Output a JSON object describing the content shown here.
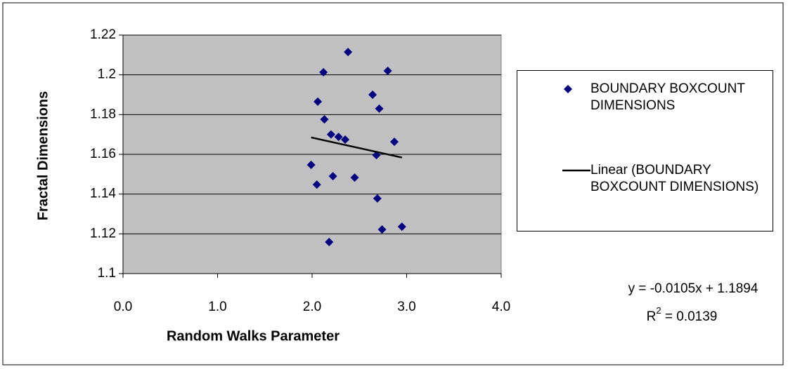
{
  "chart_data": {
    "type": "scatter",
    "xlabel": "Random Walks Parameter",
    "ylabel": "Fractal Dimensions",
    "xlim": [
      0,
      4
    ],
    "xticks": [
      {
        "value": 0,
        "label": "0.0"
      },
      {
        "value": 1,
        "label": "1.0"
      },
      {
        "value": 2,
        "label": "2.0"
      },
      {
        "value": 3,
        "label": "3.0"
      },
      {
        "value": 4,
        "label": "4.0"
      }
    ],
    "ylim": [
      1.1,
      1.22
    ],
    "yticks": [
      1.1,
      1.12,
      1.14,
      1.16,
      1.18,
      1.2,
      1.22
    ],
    "grid": true,
    "legend": "right",
    "series": [
      {
        "name": "BOUNDARY BOXCOUNT DIMENSIONS",
        "color": "#000080",
        "x": [
          2.38,
          2.12,
          2.8,
          2.64,
          2.06,
          2.71,
          2.13,
          2.2,
          2.28,
          2.35,
          2.87,
          2.68,
          1.99,
          2.22,
          2.45,
          2.05,
          2.69,
          2.95,
          2.74,
          2.18
        ],
        "values": [
          1.2115,
          1.2013,
          1.202,
          1.19,
          1.1865,
          1.183,
          1.1776,
          1.17,
          1.1688,
          1.1674,
          1.1663,
          1.1596,
          1.1547,
          1.149,
          1.1483,
          1.1448,
          1.1378,
          1.1236,
          1.1222,
          1.1159
        ]
      },
      {
        "name": "Linear (BOUNDARY BOXCOUNT DIMENSIONS)",
        "color": "#000000",
        "trendline": true,
        "x": [
          1.99,
          2.95
        ],
        "values": [
          1.1685,
          1.1584
        ]
      }
    ],
    "equation": "y = -0.0105x + 1.1894",
    "r_squared": {
      "base": "R",
      "sup": "2",
      "rest": " = 0.0139"
    }
  }
}
